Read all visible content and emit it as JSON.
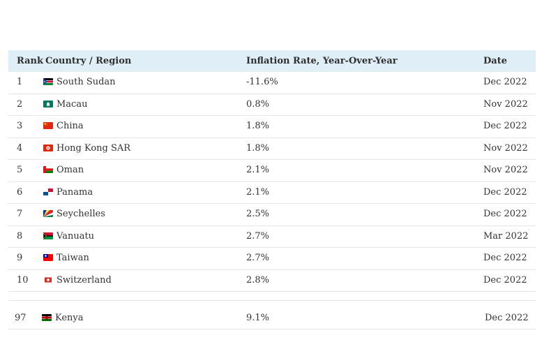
{
  "table": {
    "headers": {
      "rank": "Rank",
      "country": "Country / Region",
      "rate": "Inflation Rate, Year-Over-Year",
      "date": "Date"
    },
    "rows": [
      {
        "rank": "1",
        "country": "South Sudan",
        "flag": "south-sudan-flag-icon",
        "rate": "-11.6%",
        "date": "Dec 2022"
      },
      {
        "rank": "2",
        "country": "Macau",
        "flag": "macau-flag-icon",
        "rate": "0.8%",
        "date": "Nov 2022"
      },
      {
        "rank": "3",
        "country": "China",
        "flag": "china-flag-icon",
        "rate": "1.8%",
        "date": "Dec 2022"
      },
      {
        "rank": "4",
        "country": "Hong Kong SAR",
        "flag": "hong-kong-flag-icon",
        "rate": "1.8%",
        "date": "Nov 2022"
      },
      {
        "rank": "5",
        "country": "Oman",
        "flag": "oman-flag-icon",
        "rate": "2.1%",
        "date": "Nov 2022"
      },
      {
        "rank": "6",
        "country": "Panama",
        "flag": "panama-flag-icon",
        "rate": "2.1%",
        "date": "Dec 2022"
      },
      {
        "rank": "7",
        "country": "Seychelles",
        "flag": "seychelles-flag-icon",
        "rate": "2.5%",
        "date": "Dec 2022"
      },
      {
        "rank": "8",
        "country": "Vanuatu",
        "flag": "vanuatu-flag-icon",
        "rate": "2.7%",
        "date": "Mar 2022"
      },
      {
        "rank": "9",
        "country": "Taiwan",
        "flag": "taiwan-flag-icon",
        "rate": "2.7%",
        "date": "Dec 2022"
      },
      {
        "rank": "10",
        "country": "Switzerland",
        "flag": "switzerland-flag-icon",
        "rate": "2.8%",
        "date": "Dec 2022"
      }
    ],
    "extra_row": {
      "rank": "97",
      "country": "Kenya",
      "flag": "kenya-flag-icon",
      "rate": "9.1%",
      "date": "Dec 2022"
    }
  }
}
